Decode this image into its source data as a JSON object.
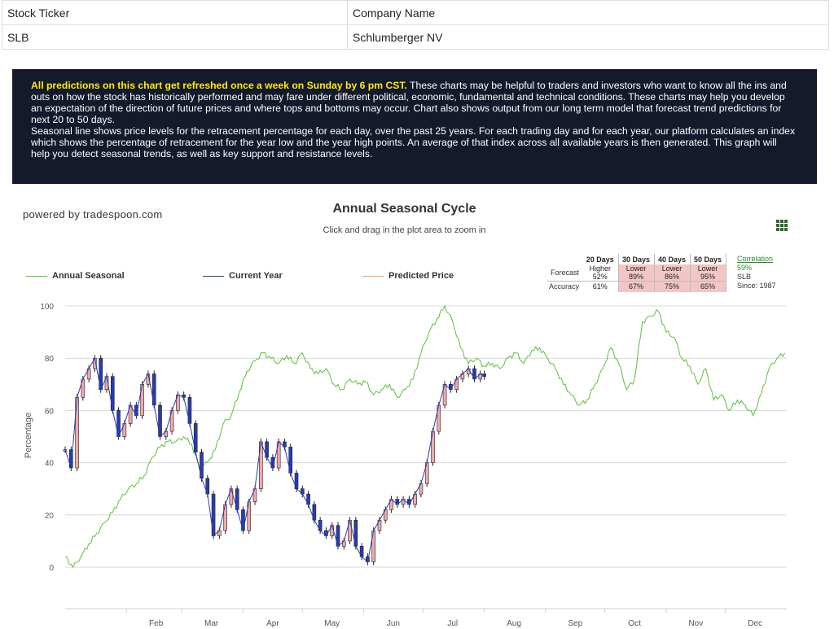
{
  "info_table": {
    "header": [
      "Stock Ticker",
      "Company Name"
    ],
    "row": [
      "SLB",
      "Schlumberger NV"
    ]
  },
  "banner": {
    "highlight": "All predictions on this chart get refreshed once a week on Sunday by 6 pm CST.",
    "p1": " These charts may be helpful to traders and investors who want to know all the ins and outs on how the stock has historically performed and may fare under different political, economic, fundamental and technical conditions. These charts may help you develop an expectation of the direction of future prices and where tops and bottoms may occur. Chart also shows output from our long term model that forecast trend predictions for next 20 to 50 days.",
    "p2": "Seasonal line shows price levels for the retracement percentage for each day, over the past 25 years. For each trading day and for each year, our platform calculates an index which shows the percentage of retracement for the year low and the year high points. An average of that index across all available years is then generated. This graph will help you detect seasonal trends, as well as key support and resistance levels."
  },
  "powered_by": "powered by tradespoon.com",
  "menu_icon": "grid-menu-icon",
  "colors": {
    "seasonal": "#5cbf3c",
    "current": "#2a3bb0",
    "predicted": "#f0a060",
    "up": "#f3a9a9",
    "down": "#2a3bb0"
  },
  "forecast": {
    "headers": [
      "20 Days",
      "30 Days",
      "40 Days",
      "50 Days"
    ],
    "forecast_label": "Forecast",
    "accuracy_label": "Accuracy",
    "forecast": [
      {
        "dir": "Higher",
        "pct": "52%",
        "red": false
      },
      {
        "dir": "Lower",
        "pct": "89%",
        "red": true
      },
      {
        "dir": "Lower",
        "pct": "86%",
        "red": true
      },
      {
        "dir": "Lower",
        "pct": "95%",
        "red": true
      }
    ],
    "accuracy": [
      "61%",
      "67%",
      "75%",
      "65%"
    ],
    "correlation_label": "Correlation",
    "correlation_value": "59%",
    "ticker": "SLB",
    "since": "Since: 1987"
  },
  "chart_data": {
    "type": "line",
    "title": "Annual Seasonal Cycle",
    "subtitle": "Click and drag in the plot area to zoom in",
    "ylabel": "Percentage",
    "xlabel": "",
    "ylim": [
      0,
      100
    ],
    "yticks": [
      0,
      20,
      40,
      60,
      80,
      100
    ],
    "months": [
      "Feb",
      "Mar",
      "Apr",
      "May",
      "Jun",
      "Jul",
      "Aug",
      "Sep",
      "Oct",
      "Nov",
      "Dec"
    ],
    "xrange_day": [
      0,
      365
    ],
    "month_days": [
      31,
      59,
      90,
      120,
      151,
      181,
      212,
      243,
      273,
      304,
      334
    ],
    "legend": [
      "Annual Seasonal",
      "Current Year",
      "Predicted Price"
    ],
    "seasonal": {
      "name": "Annual Seasonal",
      "day": [
        0,
        4,
        8,
        12,
        16,
        20,
        24,
        28,
        32,
        36,
        40,
        44,
        48,
        52,
        56,
        60,
        64,
        68,
        72,
        76,
        80,
        84,
        88,
        92,
        96,
        100,
        104,
        108,
        112,
        116,
        120,
        124,
        128,
        132,
        136,
        140,
        144,
        148,
        152,
        156,
        160,
        164,
        168,
        172,
        176,
        180,
        184,
        188,
        192,
        196,
        200,
        204,
        208,
        212,
        216,
        220,
        224,
        228,
        232,
        236,
        240,
        244,
        248,
        252,
        256,
        260,
        264,
        268,
        272,
        276,
        280,
        284,
        288,
        292,
        296,
        300,
        304,
        308,
        312,
        316,
        320,
        324,
        328,
        332,
        336,
        340,
        344,
        348,
        352,
        356,
        360,
        364
      ],
      "values": [
        4,
        0,
        4,
        9,
        13,
        17,
        21,
        26,
        30,
        32,
        35,
        42,
        46,
        48,
        48,
        50,
        47,
        38,
        40,
        45,
        55,
        58,
        67,
        75,
        79,
        82,
        80,
        78,
        81,
        78,
        82,
        76,
        74,
        76,
        70,
        68,
        72,
        70,
        71,
        66,
        68,
        70,
        65,
        68,
        72,
        82,
        90,
        95,
        100,
        94,
        84,
        78,
        80,
        77,
        78,
        76,
        80,
        82,
        78,
        83,
        84,
        80,
        76,
        70,
        66,
        62,
        64,
        70,
        76,
        84,
        78,
        68,
        72,
        94,
        96,
        98,
        90,
        88,
        80,
        77,
        70,
        76,
        64,
        66,
        60,
        64,
        62,
        58,
        66,
        76,
        80,
        82
      ]
    },
    "current_year": {
      "name": "Current Year",
      "day": [
        0,
        3,
        6,
        9,
        12,
        15,
        18,
        21,
        24,
        27,
        30,
        33,
        36,
        39,
        42,
        45,
        48,
        51,
        54,
        57,
        60,
        63,
        66,
        69,
        72,
        75,
        78,
        81,
        84,
        87,
        90,
        93,
        96,
        99,
        102,
        105,
        108,
        111,
        114,
        117,
        120,
        123,
        126,
        129,
        132,
        135,
        138,
        141,
        144,
        147,
        150,
        153,
        156,
        159,
        162,
        165,
        168,
        171,
        174,
        177,
        180,
        183,
        186,
        189,
        192,
        195,
        198,
        201,
        204,
        207,
        210,
        212
      ],
      "values": [
        45,
        38,
        65,
        72,
        76,
        80,
        68,
        73,
        60,
        50,
        55,
        62,
        58,
        70,
        74,
        62,
        50,
        52,
        60,
        66,
        65,
        55,
        44,
        34,
        28,
        12,
        14,
        24,
        30,
        22,
        14,
        25,
        30,
        48,
        42,
        38,
        48,
        46,
        36,
        30,
        28,
        24,
        18,
        14,
        12,
        16,
        8,
        10,
        18,
        8,
        4,
        2,
        14,
        18,
        22,
        26,
        24,
        26,
        24,
        28,
        32,
        40,
        52,
        62,
        70,
        68,
        72,
        74,
        76,
        72,
        74,
        73
      ]
    }
  }
}
